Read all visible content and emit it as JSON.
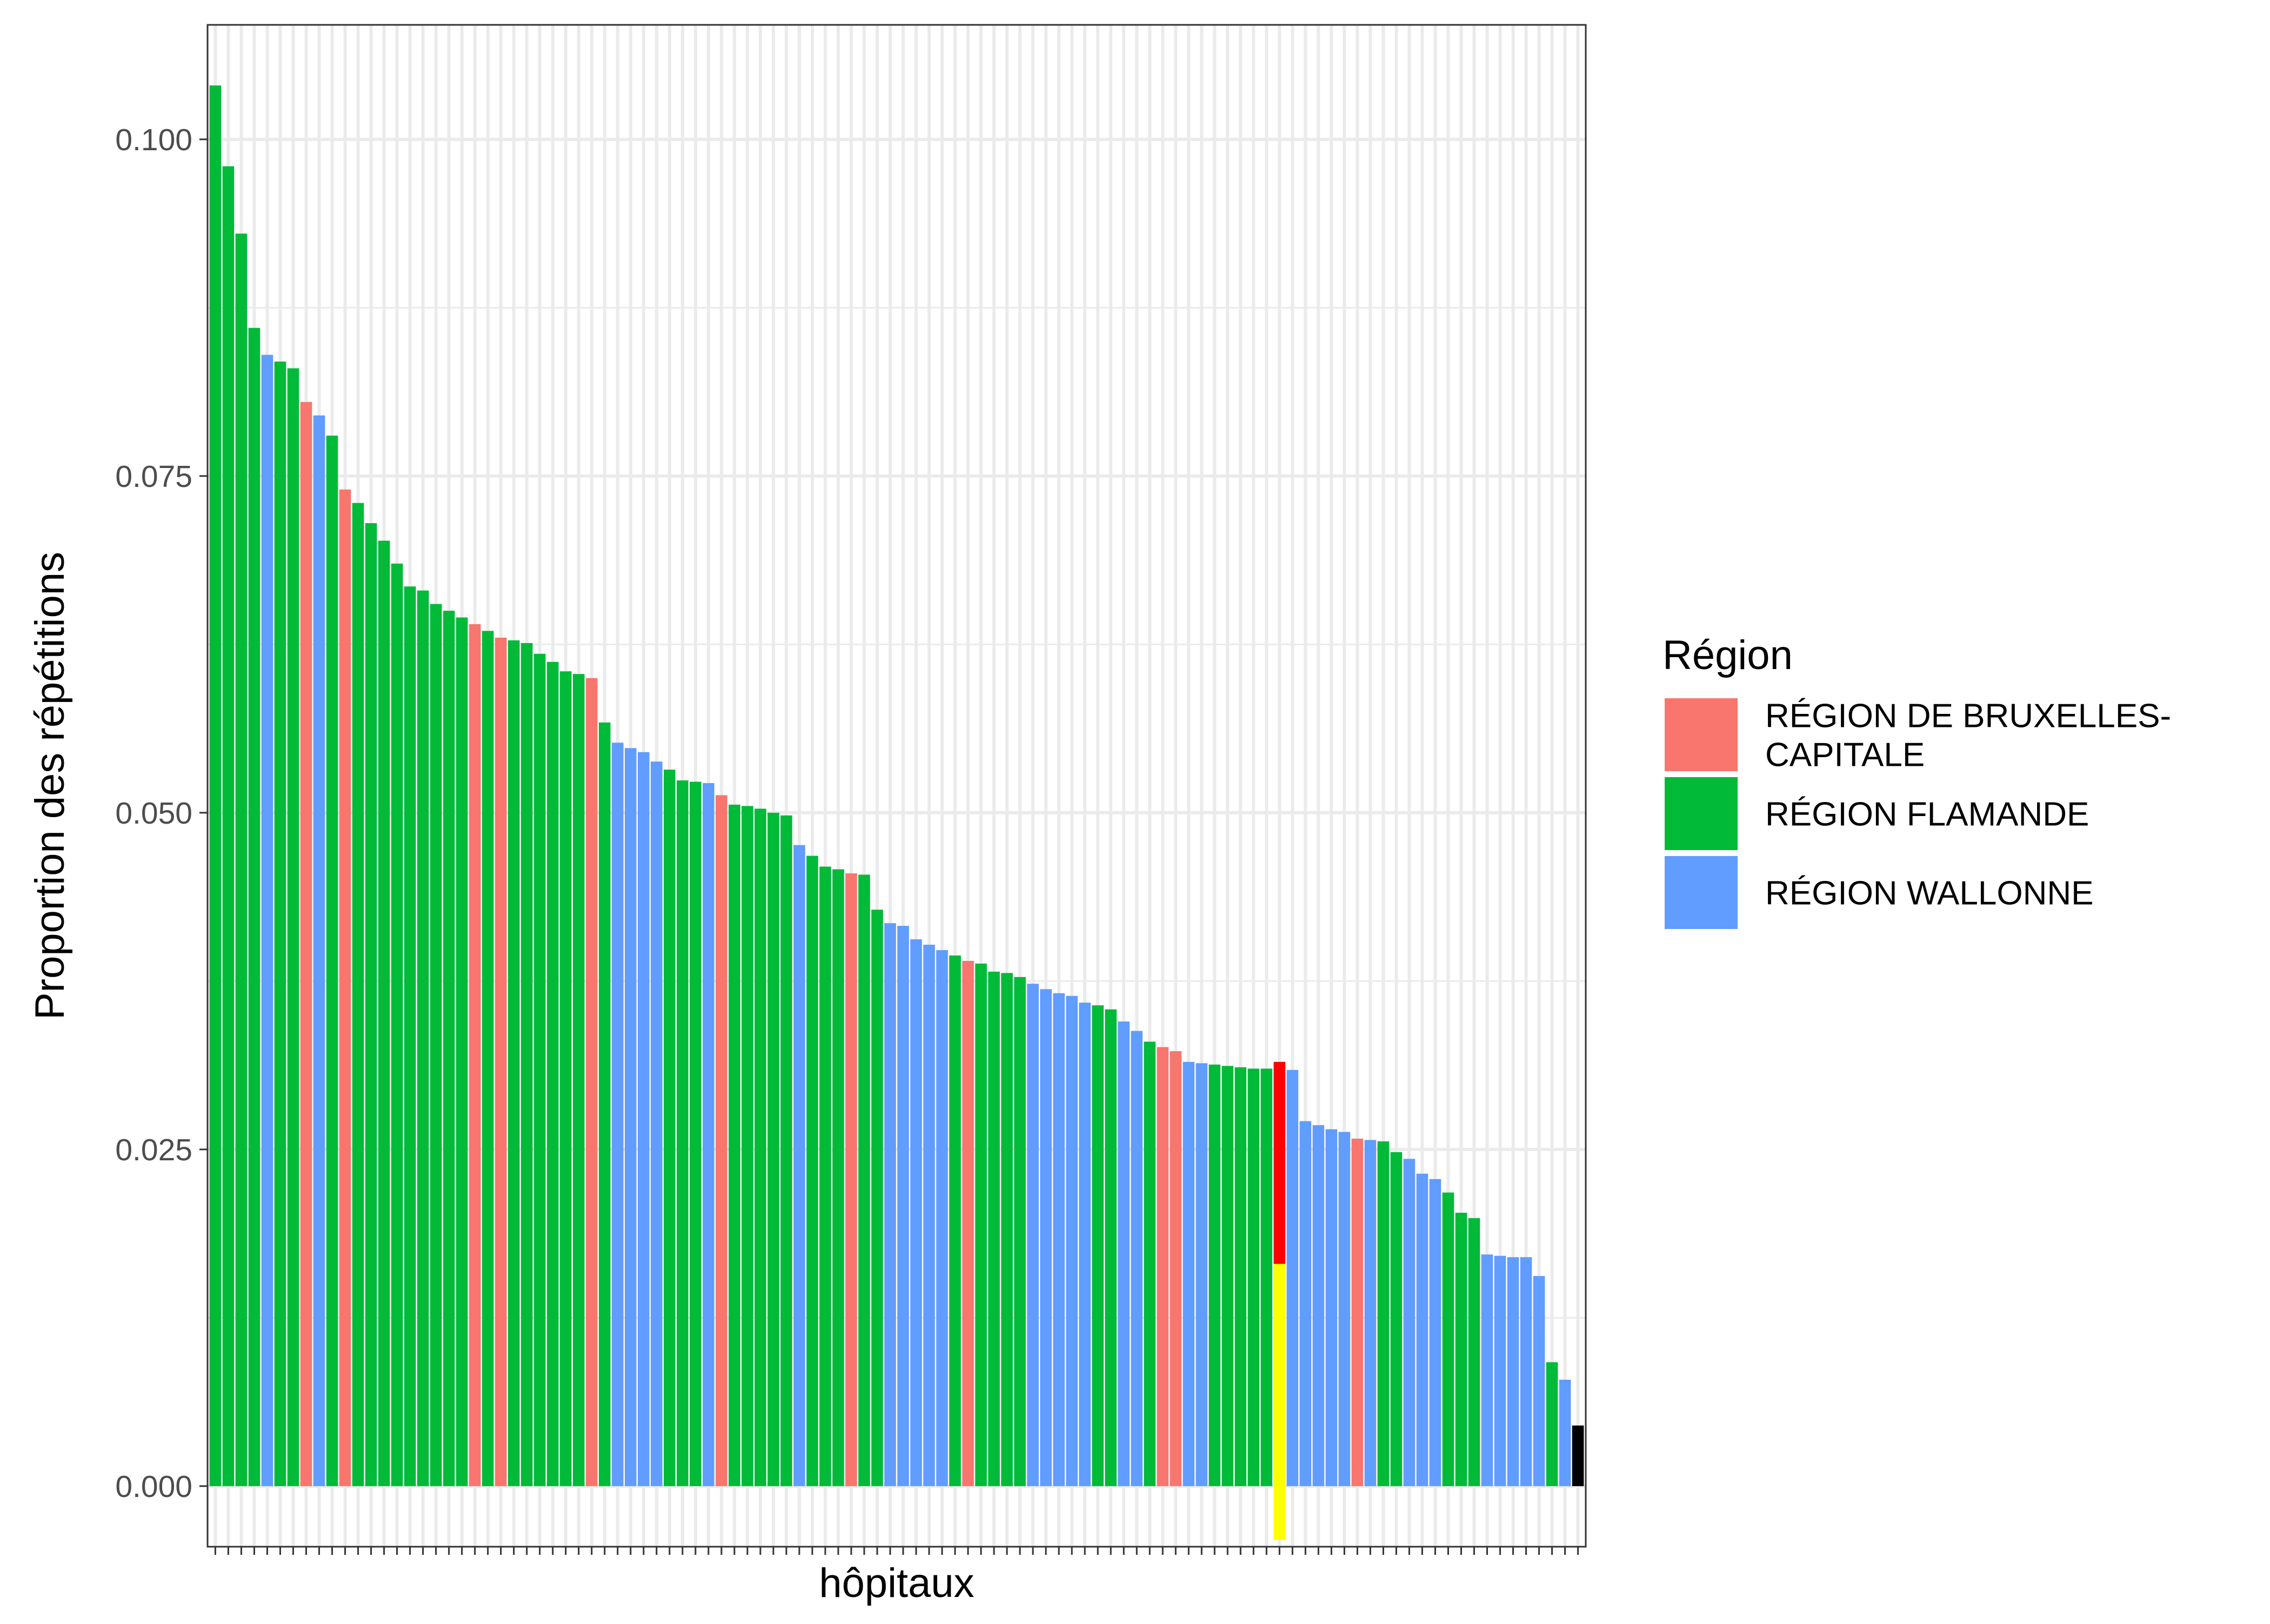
{
  "chart_data": {
    "type": "bar",
    "title": "",
    "xlabel": "hôpitaux",
    "ylabel": "Proportion des répétitions",
    "ylim": [
      -0.0045,
      0.1085
    ],
    "y_ticks": [
      "0.000",
      "0.025",
      "0.050",
      "0.075",
      "0.100"
    ],
    "grid": true,
    "legend_position": "right",
    "legend": {
      "title": "Région",
      "entries": [
        {
          "key": "BRU",
          "label_lines": [
            "RÉGION DE BRUXELLES-",
            "CAPITALE"
          ],
          "color": "#F8766D"
        },
        {
          "key": "FLA",
          "label_lines": [
            "RÉGION FLAMANDE"
          ],
          "color": "#00BA38"
        },
        {
          "key": "WAL",
          "label_lines": [
            "RÉGION WALLONNE"
          ],
          "color": "#619CFF"
        }
      ]
    },
    "highlight": {
      "index": 82,
      "total": 0.0315,
      "lower": 0.0165,
      "lower_color": "#FFFF00",
      "upper_color": "#FF0000"
    },
    "values": [
      0.104,
      0.098,
      0.093,
      0.086,
      0.084,
      0.0835,
      0.083,
      0.0805,
      0.0795,
      0.078,
      0.074,
      0.073,
      0.0715,
      0.0702,
      0.0685,
      0.0668,
      0.0665,
      0.0655,
      0.065,
      0.0645,
      0.064,
      0.0635,
      0.063,
      0.0628,
      0.0626,
      0.0618,
      0.0612,
      0.0605,
      0.0603,
      0.06,
      0.0567,
      0.0552,
      0.0548,
      0.0545,
      0.0538,
      0.0532,
      0.0524,
      0.0523,
      0.0522,
      0.0513,
      0.0506,
      0.0505,
      0.0503,
      0.05,
      0.0498,
      0.0476,
      0.0468,
      0.046,
      0.0458,
      0.0455,
      0.0454,
      0.0428,
      0.0418,
      0.0416,
      0.0406,
      0.0402,
      0.0398,
      0.0394,
      0.039,
      0.0388,
      0.0382,
      0.0381,
      0.0378,
      0.0373,
      0.0369,
      0.0366,
      0.0364,
      0.0359,
      0.0357,
      0.0354,
      0.0345,
      0.0338,
      0.033,
      0.0326,
      0.0323,
      0.0315,
      0.0314,
      0.0313,
      0.0312,
      0.0311,
      0.031,
      0.031,
      0.0315,
      0.0309,
      0.0271,
      0.0268,
      0.0265,
      0.0263,
      0.0258,
      0.0257,
      0.0256,
      0.0248,
      0.0243,
      0.0232,
      0.0228,
      0.0218,
      0.0203,
      0.0199,
      0.0172,
      0.0171,
      0.017,
      0.017,
      0.0156,
      0.0092,
      0.0079,
      0.0045
    ],
    "regions": [
      "FLA",
      "FLA",
      "FLA",
      "FLA",
      "WAL",
      "FLA",
      "FLA",
      "BRU",
      "WAL",
      "FLA",
      "BRU",
      "FLA",
      "FLA",
      "FLA",
      "FLA",
      "FLA",
      "FLA",
      "FLA",
      "FLA",
      "FLA",
      "BRU",
      "FLA",
      "BRU",
      "FLA",
      "FLA",
      "FLA",
      "FLA",
      "FLA",
      "FLA",
      "BRU",
      "FLA",
      "WAL",
      "WAL",
      "WAL",
      "WAL",
      "FLA",
      "FLA",
      "FLA",
      "WAL",
      "BRU",
      "FLA",
      "FLA",
      "FLA",
      "FLA",
      "FLA",
      "WAL",
      "FLA",
      "FLA",
      "FLA",
      "BRU",
      "FLA",
      "FLA",
      "WAL",
      "WAL",
      "WAL",
      "WAL",
      "WAL",
      "FLA",
      "BRU",
      "FLA",
      "FLA",
      "FLA",
      "FLA",
      "WAL",
      "WAL",
      "WAL",
      "WAL",
      "WAL",
      "FLA",
      "FLA",
      "WAL",
      "WAL",
      "FLA",
      "BRU",
      "BRU",
      "WAL",
      "WAL",
      "FLA",
      "FLA",
      "FLA",
      "FLA",
      "FLA",
      "FLA",
      "WAL",
      "WAL",
      "WAL",
      "WAL",
      "WAL",
      "BRU",
      "WAL",
      "FLA",
      "FLA",
      "WAL",
      "WAL",
      "WAL",
      "FLA",
      "FLA",
      "FLA",
      "WAL",
      "WAL",
      "WAL",
      "WAL",
      "WAL",
      "FLA",
      "WAL"
    ]
  }
}
